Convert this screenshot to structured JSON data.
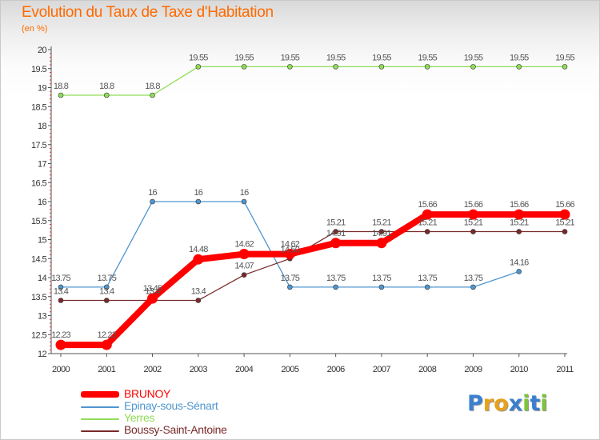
{
  "chart_data": {
    "type": "line",
    "title": "Evolution du Taux de Taxe d'Habitation",
    "subtitle": "(en %)",
    "x": [
      "2000",
      "2001",
      "2002",
      "2003",
      "2004",
      "2005",
      "2006",
      "2007",
      "2008",
      "2009",
      "2010",
      "2011"
    ],
    "ylim": [
      12,
      20
    ],
    "yticks": [
      "12",
      "12.5",
      "13",
      "13.5",
      "14",
      "14.5",
      "15",
      "15.5",
      "16",
      "16.5",
      "17",
      "17.5",
      "18",
      "18.5",
      "19",
      "19.5",
      "20"
    ],
    "grid": false,
    "legend_position": "bottom-left",
    "series": [
      {
        "name": "BRUNOY",
        "color": "#ff0000",
        "values": [
          12.23,
          12.23,
          13.45,
          14.48,
          14.62,
          14.62,
          14.91,
          14.91,
          15.66,
          15.66,
          15.66,
          15.66
        ],
        "labels": [
          "12.23",
          "12.23",
          "13.45",
          "14.48",
          "14.62",
          "14.62",
          "14.91",
          "14.91",
          "15.66",
          "15.66",
          "15.66",
          "15.66"
        ]
      },
      {
        "name": "Epinay-sous-Sénart",
        "color": "#4f96cf",
        "values": [
          13.75,
          13.75,
          16,
          16,
          16,
          13.75,
          13.75,
          13.75,
          13.75,
          13.75,
          14.16,
          null
        ],
        "labels": [
          "13.75",
          "13.75",
          "16",
          "16",
          "16",
          "13.75",
          "13.75",
          "13.75",
          "13.75",
          "13.75",
          "14.16",
          ""
        ]
      },
      {
        "name": "Yerres",
        "color": "#8fdc57",
        "values": [
          18.8,
          18.8,
          18.8,
          19.55,
          19.55,
          19.55,
          19.55,
          19.55,
          19.55,
          19.55,
          19.55,
          19.55
        ],
        "labels": [
          "18.8",
          "18.8",
          "18.8",
          "19.55",
          "19.55",
          "19.55",
          "19.55",
          "19.55",
          "19.55",
          "19.55",
          "19.55",
          "19.55"
        ]
      },
      {
        "name": "Boussy-Saint-Antoine",
        "color": "#7a2a2a",
        "values": [
          13.4,
          13.4,
          13.4,
          13.4,
          14.07,
          14.5,
          15.21,
          15.21,
          15.21,
          15.21,
          15.21,
          15.21
        ],
        "labels": [
          "13.4",
          "13.4",
          "13.4",
          "13.4",
          "14.07",
          "14.50",
          "15.21",
          "15.21",
          "15.21",
          "15.21",
          "15.21",
          "15.21"
        ]
      }
    ]
  },
  "legend": [
    {
      "label": "BRUNOY",
      "color": "#ff0000"
    },
    {
      "label": "Epinay-sous-Sénart",
      "color": "#4f96cf"
    },
    {
      "label": "Yerres",
      "color": "#8fdc57"
    },
    {
      "label": "Boussy-Saint-Antoine",
      "color": "#7a2a2a"
    }
  ],
  "logo": {
    "text": "Proxiti",
    "letters": [
      "P",
      "r",
      "o",
      "x",
      "i",
      "t",
      "i"
    ],
    "colors": [
      "#3a7fd0",
      "#e8a21a",
      "#e8a21a",
      "#3a7fd0",
      "#7cc43a",
      "#3a7fd0",
      "#7cc43a"
    ]
  }
}
